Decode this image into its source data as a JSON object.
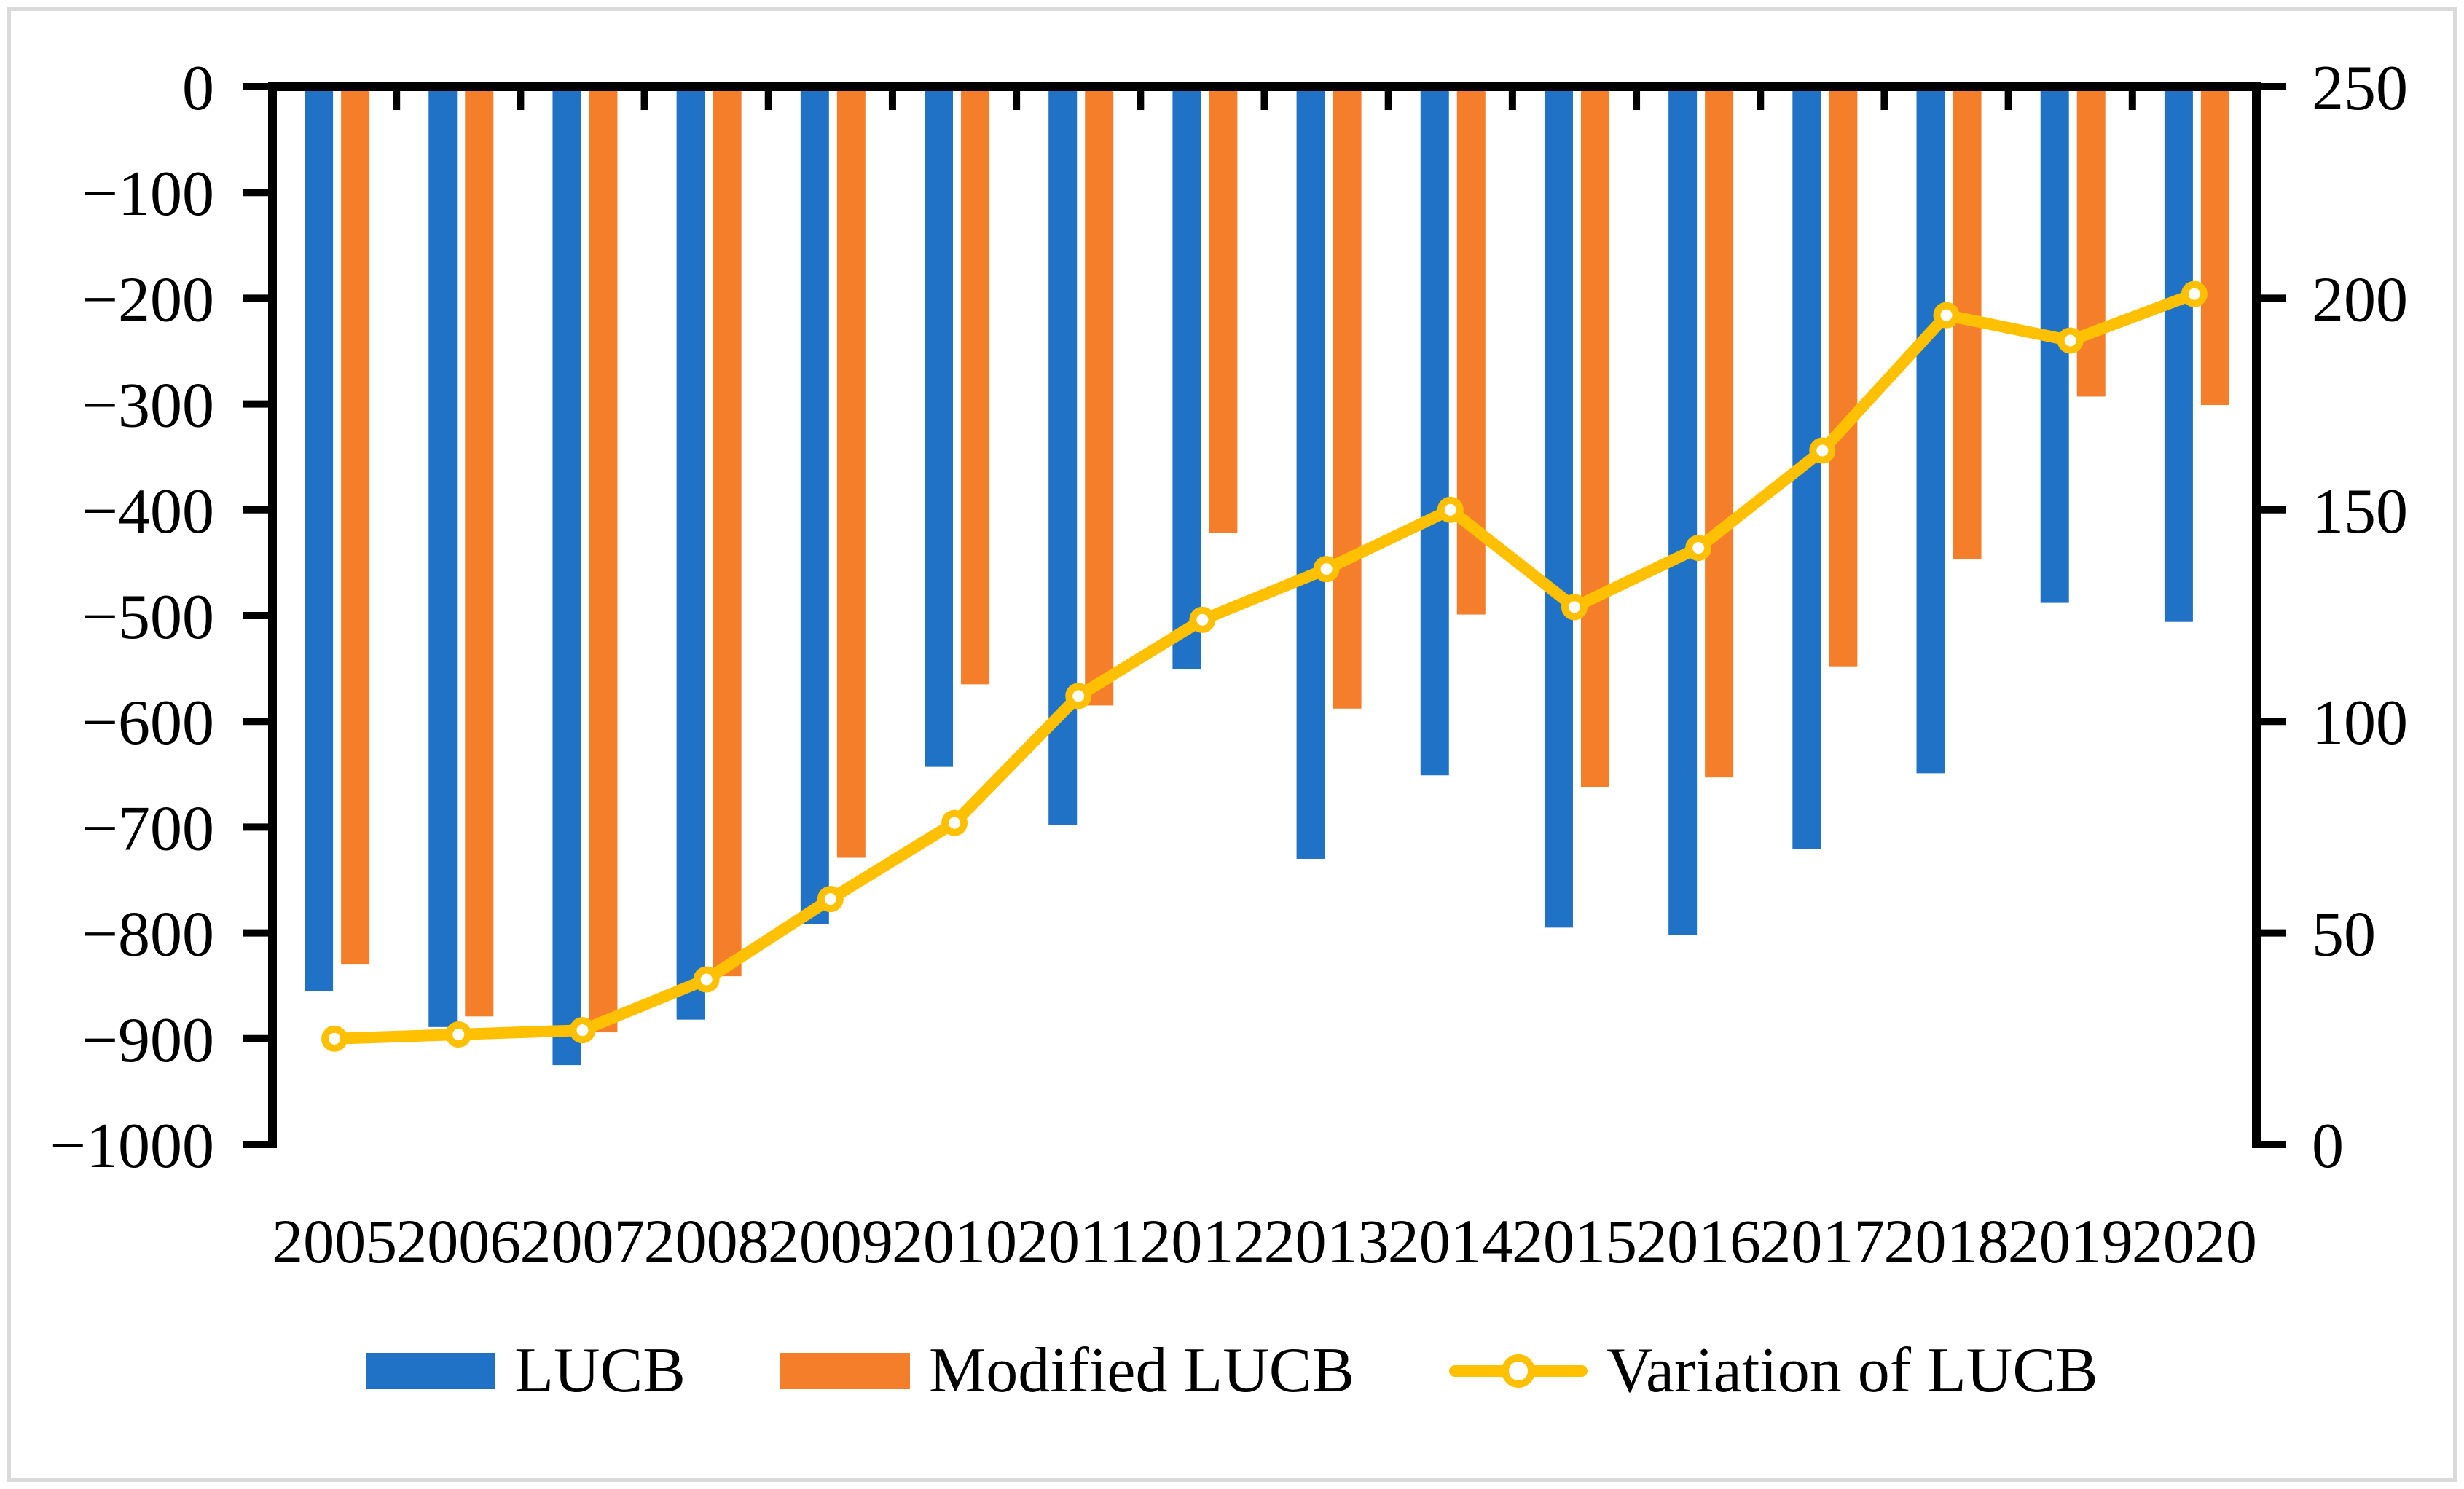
{
  "chart_data": {
    "type": "bar+line combo",
    "title": "",
    "categories": [
      "2005",
      "2006",
      "2007",
      "2008",
      "2009",
      "2010",
      "2011",
      "2012",
      "2013",
      "2014",
      "2015",
      "2016",
      "2017",
      "2018",
      "2019",
      "2020"
    ],
    "series": [
      {
        "name": "LUCB",
        "type": "bar",
        "axis": "left",
        "color": "#1F72C6",
        "values": [
          -855,
          -889,
          -925,
          -882,
          -792,
          -643,
          -698,
          -551,
          -730,
          -651,
          -795,
          -802,
          -721,
          -649,
          -488,
          -506
        ]
      },
      {
        "name": "Modified LUCB",
        "type": "bar",
        "axis": "left",
        "color": "#F57E2B",
        "values": [
          -830,
          -879,
          -894,
          -841,
          -729,
          -565,
          -585,
          -422,
          -588,
          -499,
          -662,
          -653,
          -548,
          -447,
          -293,
          -301
        ]
      },
      {
        "name": "Variation of LUCB",
        "type": "line",
        "axis": "right",
        "color": "#FFC000",
        "marker": "open-circle",
        "values": [
          25,
          26,
          27,
          39,
          58,
          76,
          106,
          124,
          136,
          150,
          127,
          141,
          164,
          196,
          190,
          201
        ]
      }
    ],
    "left_axis": {
      "min": -1000,
      "max": 0,
      "step": 100,
      "labels": [
        "0",
        "−100",
        "−200",
        "−300",
        "−400",
        "−500",
        "−600",
        "−700",
        "−800",
        "−900",
        "−1000"
      ]
    },
    "right_axis": {
      "min": 0,
      "max": 250,
      "step": 50,
      "labels": [
        "0",
        "50",
        "100",
        "150",
        "200",
        "250"
      ]
    },
    "legend_position": "bottom",
    "grid": "off",
    "axis_color": "#000000",
    "frame_border_color": "#DADADA",
    "background_color": "#FFFFFF"
  }
}
